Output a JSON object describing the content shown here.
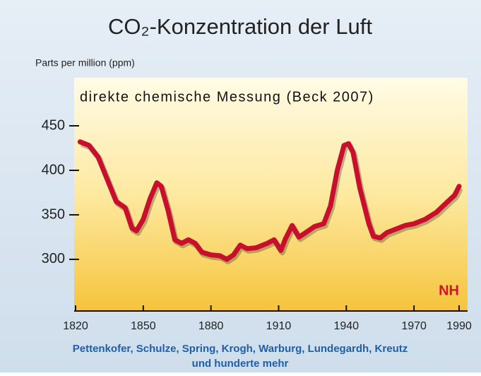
{
  "chart_data": {
    "type": "line",
    "title": "CO₂-Konzentration der Luft",
    "y_label": "Parts per million (ppm)",
    "annotation": "direkte chemische Messung (Beck 2007)",
    "region_label": "NH",
    "source": "Pettenkofer, Schulze, Spring, Krogh, Warburg, Lundegardh, Kreutz",
    "source_more": "und hunderte mehr",
    "x": [
      1822,
      1826,
      1830,
      1834,
      1838,
      1842,
      1845,
      1847,
      1850,
      1853,
      1856,
      1858,
      1861,
      1864,
      1867,
      1870,
      1873,
      1876,
      1880,
      1884,
      1887,
      1890,
      1893,
      1896,
      1900,
      1905,
      1908,
      1911,
      1913,
      1916,
      1919,
      1922,
      1926,
      1930,
      1933,
      1936,
      1939,
      1941,
      1943,
      1946,
      1950,
      1952,
      1955,
      1958,
      1962,
      1966,
      1970,
      1975,
      1980,
      1985,
      1988,
      1990
    ],
    "series": [
      {
        "color": "#c8102e",
        "values": [
          432,
          428,
          415,
          390,
          365,
          358,
          335,
          332,
          345,
          368,
          386,
          382,
          355,
          322,
          318,
          322,
          318,
          308,
          305,
          304,
          300,
          305,
          316,
          312,
          313,
          318,
          322,
          310,
          323,
          338,
          325,
          330,
          337,
          340,
          360,
          400,
          428,
          430,
          420,
          380,
          340,
          326,
          324,
          330,
          334,
          338,
          340,
          345,
          353,
          365,
          372,
          382
        ]
      }
    ],
    "xlim": [
      1820,
      1990
    ],
    "ylim": [
      242,
      504
    ],
    "xticks": [
      1820,
      1850,
      1880,
      1910,
      1940,
      1970,
      1990
    ],
    "yticks": [
      300,
      350,
      400,
      450
    ]
  }
}
